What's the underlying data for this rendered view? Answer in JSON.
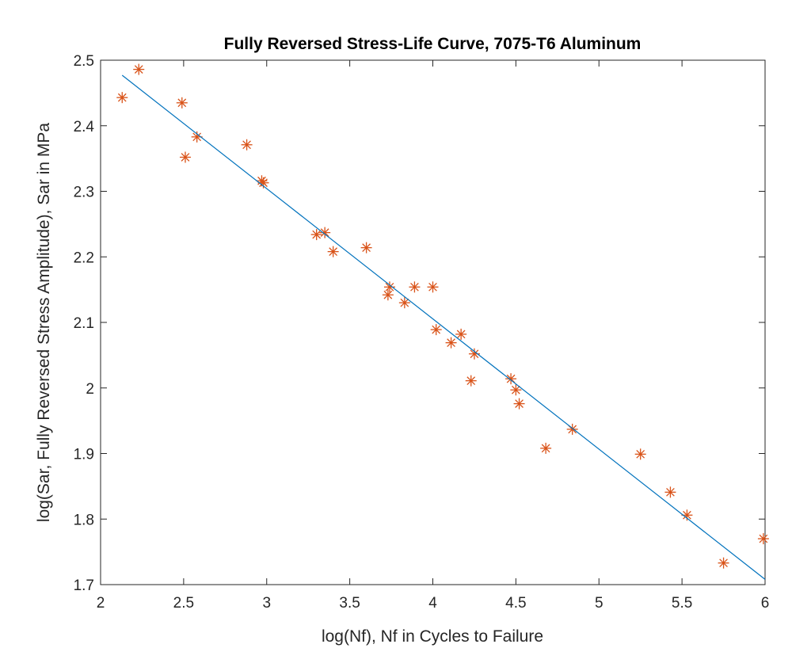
{
  "chart_data": {
    "type": "scatter",
    "title": "Fully Reversed Stress-Life Curve, 7075-T6 Aluminum",
    "xlabel": "log(Nf), Nf in Cycles to Failure",
    "ylabel": "log(Sar, Fully Reversed Stress Amplitude), Sar in MPa",
    "xlim": [
      2,
      6
    ],
    "ylim": [
      1.7,
      2.5
    ],
    "xticks": [
      "2",
      "2.5",
      "3",
      "3.5",
      "4",
      "4.5",
      "5",
      "5.5",
      "6"
    ],
    "yticks": [
      "1.7",
      "1.8",
      "1.9",
      "2",
      "2.1",
      "2.2",
      "2.3",
      "2.4",
      "2.5"
    ],
    "grid": false,
    "series": [
      {
        "type": "scatter",
        "marker": "asterisk",
        "color": "#D95319",
        "x": [
          2.13,
          2.23,
          2.49,
          2.51,
          2.58,
          2.88,
          2.97,
          2.98,
          3.3,
          3.35,
          3.4,
          3.6,
          3.73,
          3.74,
          3.83,
          3.89,
          4.0,
          4.02,
          4.11,
          4.17,
          4.23,
          4.25,
          4.47,
          4.5,
          4.52,
          4.68,
          4.84,
          5.25,
          5.43,
          5.53,
          5.75,
          5.99
        ],
        "y": [
          2.443,
          2.486,
          2.435,
          2.352,
          2.383,
          2.371,
          2.316,
          2.313,
          2.234,
          2.237,
          2.208,
          2.214,
          2.142,
          2.154,
          2.13,
          2.154,
          2.154,
          2.089,
          2.069,
          2.082,
          2.011,
          2.052,
          2.014,
          1.997,
          1.976,
          1.908,
          1.937,
          1.899,
          1.841,
          1.806,
          1.733,
          1.77
        ]
      },
      {
        "type": "line",
        "color": "#0072BD",
        "x": [
          2.13,
          6.0
        ],
        "y": [
          2.477,
          1.708
        ]
      }
    ]
  }
}
